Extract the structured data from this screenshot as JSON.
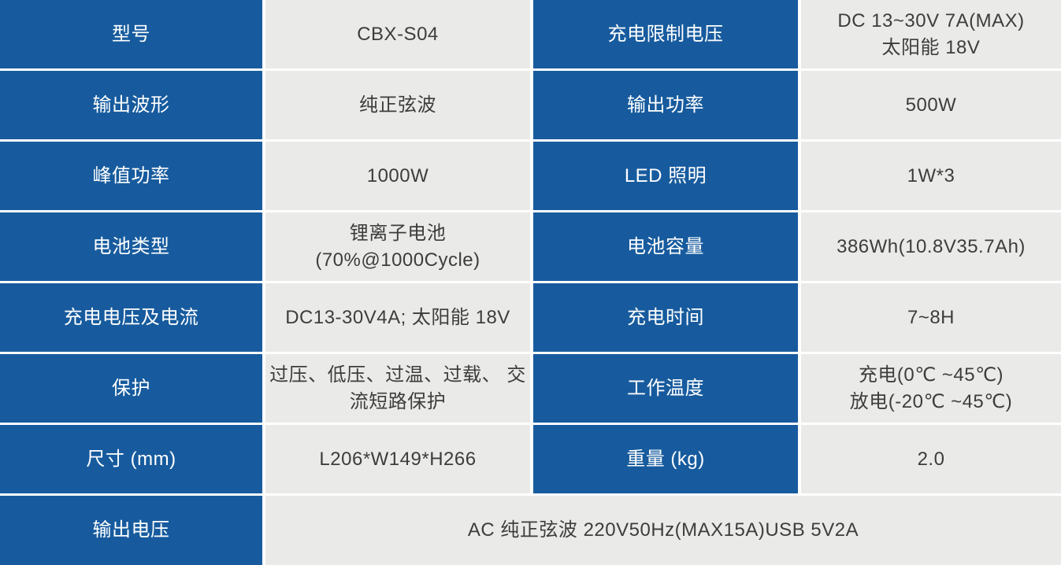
{
  "colors": {
    "header_blue": "#175b9e",
    "value_bg": "#eaeae8",
    "value_text": "#3d3d3d",
    "label_text": "#ffffff",
    "grid_line": "#ffffff"
  },
  "table": {
    "rows": [
      {
        "left": {
          "label": "型号",
          "value": "CBX-S04"
        },
        "right": {
          "label": "充电限制电压",
          "value": "DC 13~30V 7A(MAX)\n太阳能 18V"
        }
      },
      {
        "left": {
          "label": "输出波形",
          "value": "纯正弦波"
        },
        "right": {
          "label": "输出功率",
          "value": "500W"
        }
      },
      {
        "left": {
          "label": "峰值功率",
          "value": "1000W"
        },
        "right": {
          "label": "LED 照明",
          "value": "1W*3"
        }
      },
      {
        "left": {
          "label": "电池类型",
          "value": "锂离子电池\n(70%@1000Cycle)"
        },
        "right": {
          "label": "电池容量",
          "value": "386Wh(10.8V35.7Ah)"
        }
      },
      {
        "left": {
          "label": "充电电压及电流",
          "value": "DC13-30V4A; 太阳能 18V"
        },
        "right": {
          "label": "充电时间",
          "value": "7~8H"
        }
      },
      {
        "left": {
          "label": "保护",
          "value": "过压、低压、过温、过载、 交\n流短路保护"
        },
        "right": {
          "label": "工作温度",
          "value": "充电(0℃ ~45℃)\n放电(-20℃ ~45℃)"
        }
      },
      {
        "left": {
          "label": "尺寸 (mm)",
          "value": "L206*W149*H266"
        },
        "right": {
          "label": "重量 (kg)",
          "value": "2.0"
        }
      },
      {
        "left": {
          "label": "输出电压"
        },
        "merged_value": "AC 纯正弦波 220V50Hz(MAX15A)USB 5V2A"
      }
    ]
  }
}
